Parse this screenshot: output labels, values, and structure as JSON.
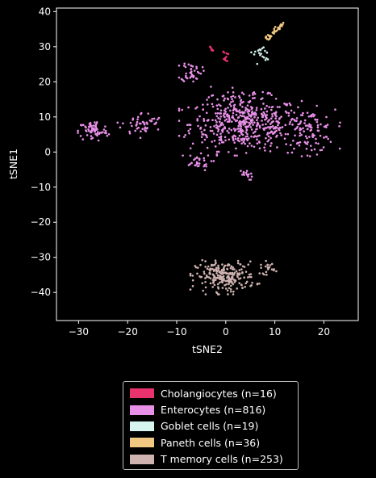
{
  "chart_data": {
    "type": "scatter",
    "title": "",
    "xlabel": "tSNE2",
    "ylabel": "tSNE1",
    "xlim": [
      -34.5,
      27
    ],
    "ylim": [
      -48,
      41
    ],
    "xticks": [
      -30,
      -20,
      -10,
      0,
      10,
      20
    ],
    "yticks": [
      -40,
      -30,
      -20,
      -10,
      0,
      10,
      20,
      30,
      40
    ],
    "xtick_labels": [
      "−30",
      "−20",
      "−10",
      "0",
      "10",
      "20"
    ],
    "ytick_labels": [
      "−40",
      "−30",
      "−20",
      "−10",
      "0",
      "10",
      "20",
      "30",
      "40"
    ],
    "grid": false,
    "legend_position": "below",
    "series": [
      {
        "name": "Cholangiocytes (n=16)",
        "color": "#e8336e",
        "x": [
          -3.2,
          -3.0,
          -2.8,
          -2.6,
          -3.1,
          -2.9,
          -0.5,
          -0.3,
          0.2,
          0.5,
          -0.4,
          0.0,
          0.3,
          -0.2,
          0.1,
          -0.1
        ],
        "y": [
          30.0,
          29.6,
          29.2,
          28.9,
          29.8,
          29.0,
          28.6,
          28.3,
          28.1,
          27.9,
          26.5,
          26.1,
          25.9,
          26.3,
          27.1,
          26.8
        ]
      },
      {
        "name": "Enterocytes (n=816)",
        "color": "#e890e8",
        "clusters": [
          {
            "cx": 4.0,
            "cy": 8.0,
            "sx": 7.5,
            "sy": 5.0,
            "n": 480
          },
          {
            "cx": 17.0,
            "cy": 6.0,
            "sx": 3.5,
            "sy": 4.0,
            "n": 100
          },
          {
            "cx": -27.0,
            "cy": 6.0,
            "sx": 2.0,
            "sy": 2.0,
            "n": 70
          },
          {
            "cx": -17.0,
            "cy": 8.0,
            "sx": 2.8,
            "sy": 2.2,
            "n": 50
          },
          {
            "cx": -7.0,
            "cy": 23.0,
            "sx": 1.4,
            "sy": 2.0,
            "n": 40
          },
          {
            "cx": -6.0,
            "cy": -3.0,
            "sx": 2.0,
            "sy": 1.5,
            "n": 30
          },
          {
            "cx": 4.0,
            "cy": -6.5,
            "sx": 1.0,
            "sy": 1.0,
            "n": 16
          },
          {
            "cx": 2.0,
            "cy": 15.0,
            "sx": 4.0,
            "sy": 2.5,
            "n": 30
          }
        ]
      },
      {
        "name": "Goblet cells (n=19)",
        "color": "#d6f5ee",
        "x": [
          5.2,
          6.0,
          6.6,
          6.9,
          7.2,
          7.4,
          7.7,
          8.0,
          7.0,
          7.5,
          8.3,
          8.6,
          8.1,
          7.8,
          8.4,
          6.4,
          7.1,
          5.8,
          6.8
        ],
        "y": [
          28.4,
          28.6,
          28.9,
          29.2,
          28.0,
          29.5,
          29.8,
          28.8,
          27.6,
          27.2,
          26.7,
          26.4,
          26.2,
          26.9,
          28.3,
          25.1,
          29.0,
          27.8,
          28.2
        ]
      },
      {
        "name": "Paneth cells (n=36)",
        "color": "#f0c882",
        "trail": {
          "x0": 8.1,
          "y0": 32.0,
          "x1": 11.6,
          "y1": 36.5,
          "n": 36
        }
      },
      {
        "name": "T memory cells (n=253)",
        "color": "#cfb3b0",
        "clusters": [
          {
            "cx": 0.0,
            "cy": -35.5,
            "sx": 4.0,
            "sy": 2.8,
            "n": 233
          },
          {
            "cx": 8.5,
            "cy": -33.0,
            "sx": 1.0,
            "sy": 1.2,
            "n": 20
          }
        ]
      }
    ]
  }
}
